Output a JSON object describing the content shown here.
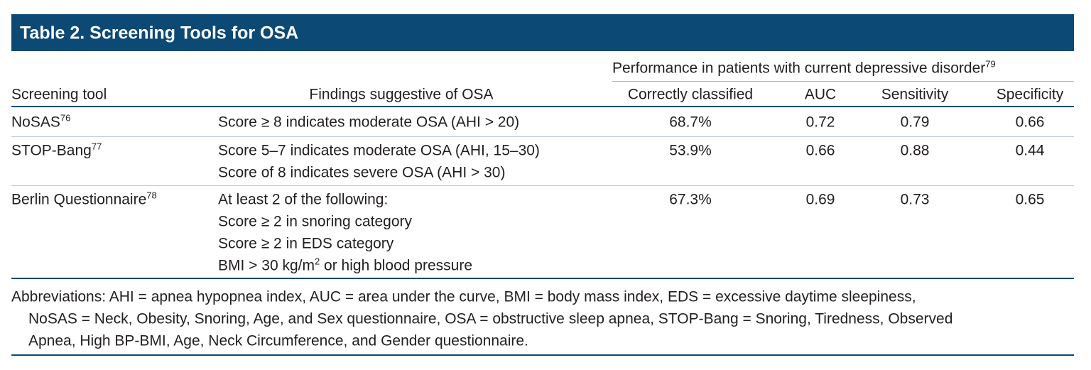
{
  "title": "Table 2. Screening Tools for OSA",
  "table": {
    "group_header": {
      "text": "Performance in patients with current depressive disorder",
      "sup": "79"
    },
    "columns": [
      "Screening tool",
      "Findings suggestive of OSA",
      "Correctly classified",
      "AUC",
      "Sensitivity",
      "Specificity"
    ],
    "rows": [
      {
        "tool": {
          "text": "NoSAS",
          "sup": "76"
        },
        "findings": [
          "Score ≥ 8 indicates moderate OSA (AHI > 20)"
        ],
        "correctly_classified": "68.7%",
        "auc": "0.72",
        "sensitivity": "0.79",
        "specificity": "0.66"
      },
      {
        "tool": {
          "text": "STOP-Bang",
          "sup": "77"
        },
        "findings": [
          "Score 5–7 indicates moderate OSA (AHI, 15–30)",
          "Score of 8 indicates severe OSA (AHI > 30)"
        ],
        "correctly_classified": "53.9%",
        "auc": "0.66",
        "sensitivity": "0.88",
        "specificity": "0.44"
      },
      {
        "tool": {
          "text": "Berlin Questionnaire",
          "sup": "78"
        },
        "findings": [
          "At least 2 of the following:",
          "Score ≥ 2 in snoring category",
          "Score ≥ 2 in EDS category",
          {
            "text": "BMI > 30 kg/m",
            "sup": "2",
            "tail": " or high blood pressure"
          }
        ],
        "correctly_classified": "67.3%",
        "auc": "0.69",
        "sensitivity": "0.73",
        "specificity": "0.65"
      }
    ]
  },
  "footnote": [
    "Abbreviations: AHI = apnea hypopnea index, AUC = area under the curve, BMI = body mass index, EDS = excessive daytime sleepiness,",
    "NoSAS = Neck, Obesity, Snoring, Age, and Sex questionnaire, OSA = obstructive sleep apnea, STOP-Bang = Snoring, Tiredness, Observed",
    "Apnea, High BP-BMI, Age, Neck Circumference, and Gender questionnaire."
  ]
}
